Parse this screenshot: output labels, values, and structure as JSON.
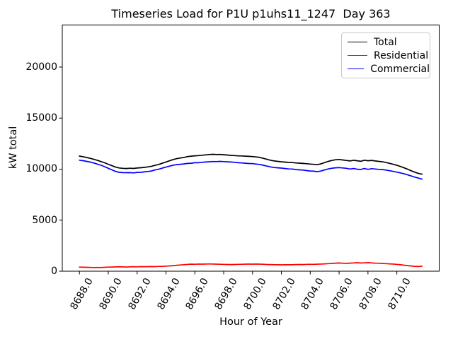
{
  "chart_data": {
    "type": "line",
    "title": "Timeseries Load for P1U p1uhs11_1247  Day 363",
    "xlabel": "Hour of Year",
    "ylabel": "kW total",
    "grid": false,
    "legend_location": "upper right",
    "xlim": [
      8686.8125,
      8712.9375
    ],
    "ylim": [
      0,
      24130
    ],
    "x_start": 8688.0,
    "x_step": 0.25,
    "x_ticks": [
      8688,
      8690,
      8692,
      8694,
      8696,
      8698,
      8700,
      8702,
      8704,
      8706,
      8708,
      8710
    ],
    "x_tick_labels": [
      "8688.0",
      "8690.0",
      "8692.0",
      "8694.0",
      "8696.0",
      "8698.0",
      "8700.0",
      "8702.0",
      "8704.0",
      "8706.0",
      "8708.0",
      "8710.0"
    ],
    "y_ticks": [
      0,
      5000,
      10000,
      15000,
      20000
    ],
    "series": [
      {
        "name": "Total",
        "color": "#000000",
        "values": [
          11280,
          11220,
          11140,
          11060,
          10960,
          10860,
          10740,
          10620,
          10480,
          10340,
          10200,
          10120,
          10080,
          10060,
          10090,
          10070,
          10110,
          10140,
          10170,
          10220,
          10280,
          10370,
          10460,
          10580,
          10700,
          10820,
          10940,
          11030,
          11090,
          11150,
          11230,
          11270,
          11310,
          11330,
          11360,
          11400,
          11430,
          11450,
          11430,
          11440,
          11410,
          11380,
          11350,
          11330,
          11300,
          11290,
          11270,
          11250,
          11230,
          11200,
          11150,
          11060,
          10960,
          10870,
          10800,
          10760,
          10720,
          10690,
          10660,
          10640,
          10610,
          10590,
          10560,
          10530,
          10500,
          10470,
          10440,
          10520,
          10640,
          10760,
          10850,
          10920,
          10950,
          10900,
          10850,
          10800,
          10870,
          10820,
          10770,
          10880,
          10820,
          10860,
          10800,
          10760,
          10720,
          10650,
          10570,
          10480,
          10380,
          10260,
          10130,
          9990,
          9840,
          9700,
          9580,
          9510
        ]
      },
      {
        "name": "Residential",
        "color": "#ff0000",
        "values": [
          400,
          390,
          380,
          370,
          360,
          370,
          360,
          380,
          400,
          410,
          420,
          430,
          420,
          410,
          430,
          440,
          430,
          450,
          440,
          450,
          460,
          450,
          470,
          480,
          500,
          520,
          550,
          580,
          610,
          640,
          670,
          690,
          680,
          700,
          690,
          700,
          710,
          700,
          690,
          680,
          670,
          660,
          650,
          660,
          670,
          680,
          690,
          700,
          690,
          700,
          690,
          680,
          660,
          650,
          640,
          630,
          620,
          630,
          640,
          630,
          650,
          660,
          650,
          670,
          680,
          670,
          690,
          700,
          720,
          740,
          760,
          790,
          800,
          780,
          770,
          790,
          810,
          830,
          800,
          820,
          840,
          810,
          790,
          780,
          760,
          740,
          720,
          700,
          670,
          630,
          590,
          550,
          510,
          480,
          460,
          490
        ]
      },
      {
        "name": "Commercial",
        "color": "#0000ff",
        "values": [
          10880,
          10830,
          10760,
          10690,
          10600,
          10490,
          10380,
          10240,
          10080,
          9930,
          9780,
          9690,
          9660,
          9650,
          9660,
          9630,
          9680,
          9690,
          9730,
          9770,
          9820,
          9920,
          9990,
          10100,
          10200,
          10300,
          10390,
          10450,
          10480,
          10510,
          10560,
          10580,
          10630,
          10630,
          10670,
          10700,
          10720,
          10750,
          10740,
          10760,
          10740,
          10720,
          10700,
          10670,
          10630,
          10610,
          10580,
          10550,
          10540,
          10500,
          10460,
          10380,
          10300,
          10220,
          10160,
          10130,
          10100,
          10060,
          10020,
          10010,
          9960,
          9930,
          9910,
          9860,
          9820,
          9800,
          9750,
          9820,
          9920,
          10020,
          10090,
          10130,
          10150,
          10120,
          10080,
          10010,
          10060,
          9990,
          9970,
          10060,
          9980,
          10050,
          10010,
          9980,
          9960,
          9910,
          9850,
          9780,
          9710,
          9630,
          9540,
          9440,
          9330,
          9220,
          9120,
          9020
        ]
      }
    ]
  }
}
